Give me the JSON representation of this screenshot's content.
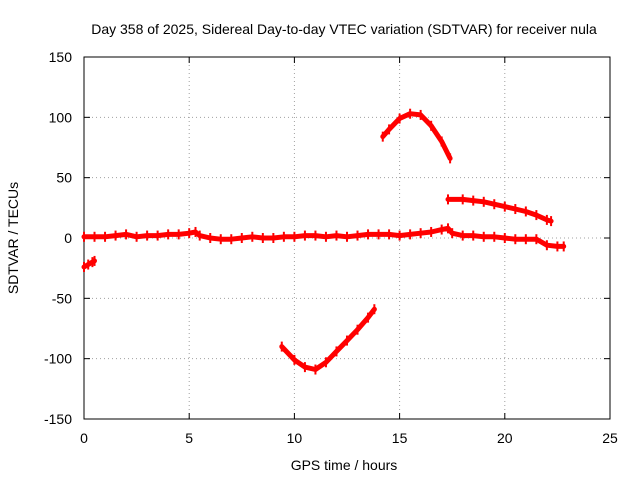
{
  "chart_data": {
    "type": "scatter",
    "title": "Day 358 of 2025, Sidereal Day-to-day VTEC variation (SDTVAR) for receiver nula",
    "xlabel": "GPS time / hours",
    "ylabel": "SDTVAR / TECUs",
    "xlim": [
      0,
      25
    ],
    "ylim": [
      -150,
      150
    ],
    "xticks": [
      0,
      5,
      10,
      15,
      20,
      25
    ],
    "yticks": [
      -150,
      -100,
      -50,
      0,
      50,
      100,
      150
    ],
    "grid": true,
    "legend": "none",
    "series_color": "#ff0000",
    "series": [
      {
        "name": "main",
        "points": [
          [
            0,
            1
          ],
          [
            0.5,
            1
          ],
          [
            1,
            1
          ],
          [
            1.5,
            2
          ],
          [
            2,
            3
          ],
          [
            2.5,
            1
          ],
          [
            3,
            2
          ],
          [
            3.5,
            2
          ],
          [
            4,
            3
          ],
          [
            4.5,
            3
          ],
          [
            5,
            4
          ],
          [
            5.3,
            5
          ],
          [
            5.5,
            2
          ],
          [
            6,
            0
          ],
          [
            6.5,
            -1
          ],
          [
            7,
            -1
          ],
          [
            7.5,
            0
          ],
          [
            8,
            1
          ],
          [
            8.5,
            0
          ],
          [
            9,
            0
          ],
          [
            9.5,
            1
          ],
          [
            10,
            1
          ],
          [
            10.5,
            2
          ],
          [
            11,
            2
          ],
          [
            11.5,
            1
          ],
          [
            12,
            2
          ],
          [
            12.5,
            1
          ],
          [
            13,
            2
          ],
          [
            13.5,
            3
          ],
          [
            14,
            3
          ],
          [
            14.5,
            3
          ],
          [
            15,
            2
          ],
          [
            15.5,
            3
          ],
          [
            16,
            4
          ],
          [
            16.5,
            5
          ],
          [
            17,
            7
          ],
          [
            17.3,
            8
          ],
          [
            17.5,
            4
          ],
          [
            18,
            2
          ],
          [
            18.5,
            2
          ],
          [
            19,
            1
          ],
          [
            19.5,
            1
          ],
          [
            20,
            0
          ],
          [
            20.5,
            -1
          ],
          [
            21,
            -1
          ],
          [
            21.5,
            -1
          ],
          [
            22,
            -6
          ],
          [
            22.5,
            -7
          ],
          [
            22.8,
            -7
          ]
        ]
      },
      {
        "name": "start",
        "points": [
          [
            0,
            -24
          ],
          [
            0.2,
            -22
          ],
          [
            0.4,
            -20
          ],
          [
            0.5,
            -19
          ]
        ]
      },
      {
        "name": "high",
        "points": [
          [
            14.2,
            84
          ],
          [
            14.5,
            90
          ],
          [
            15,
            99
          ],
          [
            15.5,
            103
          ],
          [
            16,
            102
          ],
          [
            16.5,
            93
          ],
          [
            17,
            80
          ],
          [
            17.4,
            66
          ]
        ]
      },
      {
        "name": "low",
        "points": [
          [
            9.4,
            -90
          ],
          [
            10,
            -101
          ],
          [
            10.5,
            -107
          ],
          [
            11,
            -109
          ],
          [
            11.5,
            -103
          ],
          [
            12,
            -94
          ],
          [
            12.5,
            -85
          ],
          [
            13,
            -76
          ],
          [
            13.5,
            -66
          ],
          [
            13.8,
            -59
          ]
        ]
      },
      {
        "name": "tail",
        "points": [
          [
            17.3,
            32
          ],
          [
            18,
            32
          ],
          [
            18.5,
            31
          ],
          [
            19,
            30
          ],
          [
            19.5,
            28
          ],
          [
            20,
            26
          ],
          [
            20.5,
            24
          ],
          [
            21,
            22
          ],
          [
            21.5,
            19
          ],
          [
            22,
            15
          ],
          [
            22.2,
            14
          ]
        ]
      }
    ]
  }
}
